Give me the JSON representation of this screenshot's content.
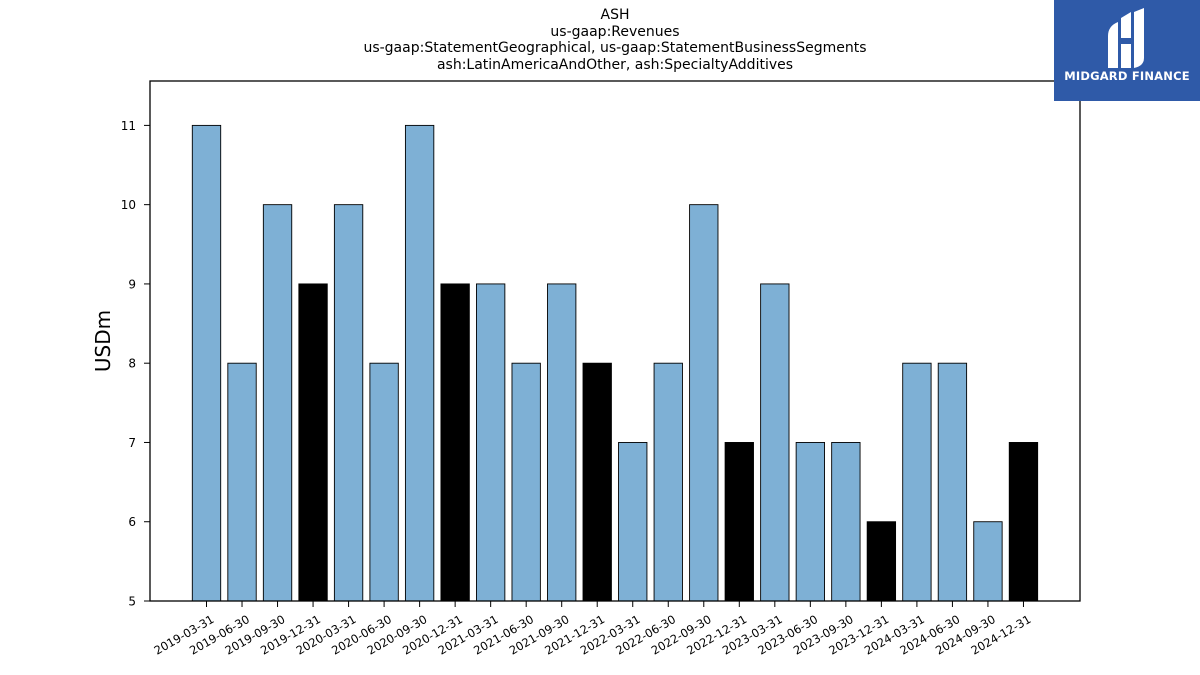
{
  "chart_data": {
    "type": "bar",
    "title_lines": [
      "ASH",
      "us-gaap:Revenues",
      "us-gaap:StatementGeographical, us-gaap:StatementBusinessSegments",
      "ash:LatinAmericaAndOther, ash:SpecialtyAdditives"
    ],
    "xlabel": "",
    "ylabel": "USDm",
    "ylim": [
      5,
      11.56
    ],
    "yticks": [
      5,
      6,
      7,
      8,
      9,
      10,
      11
    ],
    "categories": [
      "2019-03-31",
      "2019-06-30",
      "2019-09-30",
      "2019-12-31",
      "2020-03-31",
      "2020-06-30",
      "2020-09-30",
      "2020-12-31",
      "2021-03-31",
      "2021-06-30",
      "2021-09-30",
      "2021-12-31",
      "2022-03-31",
      "2022-06-30",
      "2022-09-30",
      "2022-12-31",
      "2023-03-31",
      "2023-06-30",
      "2023-09-30",
      "2023-12-31",
      "2024-03-31",
      "2024-06-30",
      "2024-09-30",
      "2024-12-31"
    ],
    "values": [
      11,
      8,
      10,
      9,
      10,
      8,
      11,
      9,
      9,
      8,
      9,
      8,
      7,
      8,
      10,
      7,
      9,
      7,
      7,
      6,
      8,
      8,
      6,
      7
    ],
    "highlight": [
      false,
      false,
      false,
      true,
      false,
      false,
      false,
      true,
      false,
      false,
      false,
      true,
      false,
      false,
      false,
      true,
      false,
      false,
      false,
      true,
      false,
      false,
      false,
      true
    ],
    "colors": {
      "quarter": "#7eb0d5",
      "year_end": "#000000",
      "edge": "#000000"
    }
  },
  "logo": {
    "text": "MIDGARD FINANCE",
    "background": "#2f5aa8"
  }
}
